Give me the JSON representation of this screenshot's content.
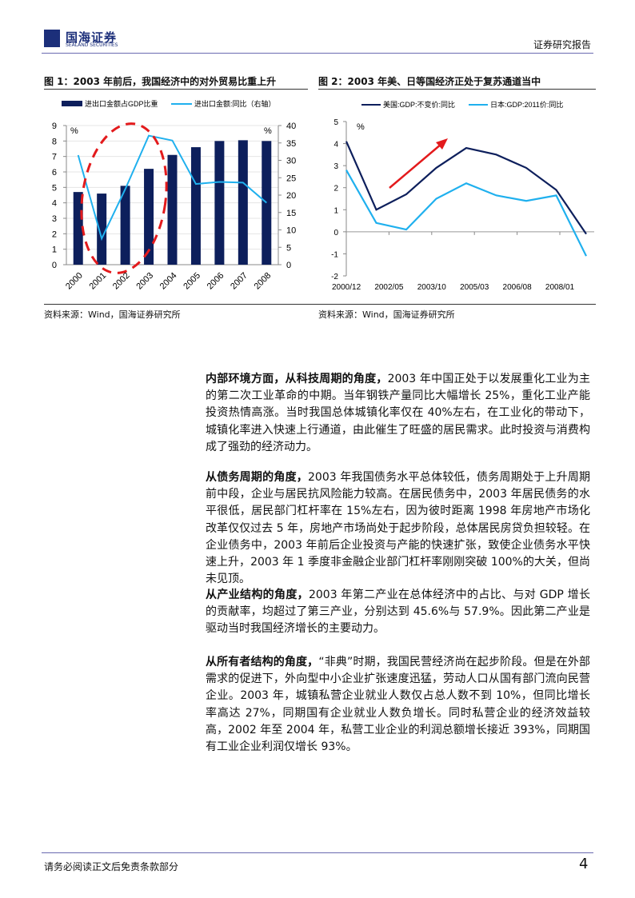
{
  "header": {
    "logo_cn": "国海证券",
    "logo_en": "SEALAND SECURITIES",
    "report_type": "证券研究报告"
  },
  "figure1": {
    "title": "图 1：2003 年前后，我国经济中的对外贸易比重上升",
    "source": "资料来源：Wind，国海证券研究所"
  },
  "figure2": {
    "title": "图 2：2003 年美、日等国经济正处于复苏通道当中",
    "source": "资料来源：Wind，国海证券研究所"
  },
  "chart_data": [
    {
      "type": "bar+line",
      "categories": [
        "2000",
        "2001",
        "2002",
        "2003",
        "2004",
        "2005",
        "2006",
        "2007",
        "2008"
      ],
      "series": [
        {
          "name": "进出口金额占GDP比重",
          "type": "bar",
          "axis": "left",
          "color": "#0d1f5c",
          "values": [
            4.7,
            4.6,
            5.1,
            6.2,
            7.1,
            7.6,
            8.0,
            8.05,
            8.0
          ]
        },
        {
          "name": "进出口金额:同比（右轴）",
          "type": "line",
          "axis": "right",
          "color": "#1fb0ee",
          "values": [
            31.5,
            7.5,
            21.7,
            37.1,
            35.7,
            23.2,
            23.8,
            23.6,
            17.8
          ]
        }
      ],
      "ylim_left": [
        0,
        9
      ],
      "ylim_right": [
        0,
        40
      ],
      "yticks_left": [
        "0",
        "1",
        "2",
        "3",
        "4",
        "5",
        "6",
        "7",
        "8",
        "9"
      ],
      "yticks_right": [
        "0",
        "5",
        "10",
        "15",
        "20",
        "25",
        "30",
        "35",
        "40"
      ],
      "ylabel_left": "%",
      "ylabel_right": "%",
      "legend": "top",
      "annotation": "red dashed ellipse around 2001-2003"
    },
    {
      "type": "line",
      "x": [
        "2000",
        "2001",
        "2002",
        "2003",
        "2004",
        "2005",
        "2006",
        "2007",
        "2008"
      ],
      "xticks": [
        "2000/12",
        "2002/05",
        "2003/10",
        "2005/03",
        "2006/08",
        "2008/01"
      ],
      "series": [
        {
          "name": "美国:GDP:不变价:同比",
          "color": "#0d1f5c",
          "values": [
            4.1,
            1.0,
            1.7,
            2.9,
            3.8,
            3.5,
            2.9,
            1.9,
            -0.1
          ]
        },
        {
          "name": "日本:GDP:2011价:同比",
          "color": "#1fb0ee",
          "values": [
            2.8,
            0.4,
            0.1,
            1.5,
            2.2,
            1.65,
            1.4,
            1.65,
            -1.1
          ]
        }
      ],
      "ylim": [
        -2,
        5
      ],
      "yticks": [
        "-2",
        "-1",
        "0",
        "1",
        "2",
        "3",
        "4",
        "5"
      ],
      "ylabel": "%",
      "legend": "top",
      "annotation": "red upward arrow"
    }
  ],
  "paragraphs": [
    {
      "lead": "内部环境方面，从科技周期的角度，",
      "text": "2003 年中国正处于以发展重化工业为主的第二次工业革命的中期。当年钢铁产量同比大幅增长 25%，重化工业产能投资热情高涨。当时我国总体城镇化率仅在 40%左右，在工业化的带动下，城镇化率进入快速上行通道，由此催生了旺盛的居民需求。此时投资与消费构成了强劲的经济动力。"
    },
    {
      "lead": "从债务周期的角度，",
      "text": "2003 年我国债务水平总体较低，债务周期处于上升周期前中段，企业与居民抗风险能力较高。在居民债务中，2003 年居民债务的水平很低，居民部门杠杆率在 15%左右，因为彼时距离 1998 年房地产市场化改革仅仅过去 5 年，房地产市场尚处于起步阶段，总体居民房贷负担较轻。在企业债务中，2003 年前后企业投资与产能的快速扩张，致使企业债务水平快速上升，2003 年 1 季度非金融企业部门杠杆率刚刚突破 100%的大关，但尚未见顶。"
    },
    {
      "lead": "从产业结构的角度，",
      "text": "2003 年第二产业在总体经济中的占比、与对 GDP 增长的贡献率，均超过了第三产业，分别达到 45.6%与 57.9%。因此第二产业是驱动当时我国经济增长的主要动力。"
    },
    {
      "lead": "从所有者结构的角度，",
      "text": "“非典”时期，我国民营经济尚在起步阶段。但是在外部需求的促进下，外向型中小企业扩张速度迅猛，劳动人口从国有部门流向民营企业。2003 年，城镇私营企业就业人数仅占总人数不到 10%，但同比增长率高达 27%，同期国有企业就业人数负增长。同时私营企业的经济效益较高，2002 年至 2004 年，私营工业企业的利润总额增长接近 393%，同期国有工业企业利润仅增长 93%。"
    }
  ],
  "footer": {
    "disclaimer": "请务必阅读正文后免责条款部分",
    "page": "4"
  }
}
